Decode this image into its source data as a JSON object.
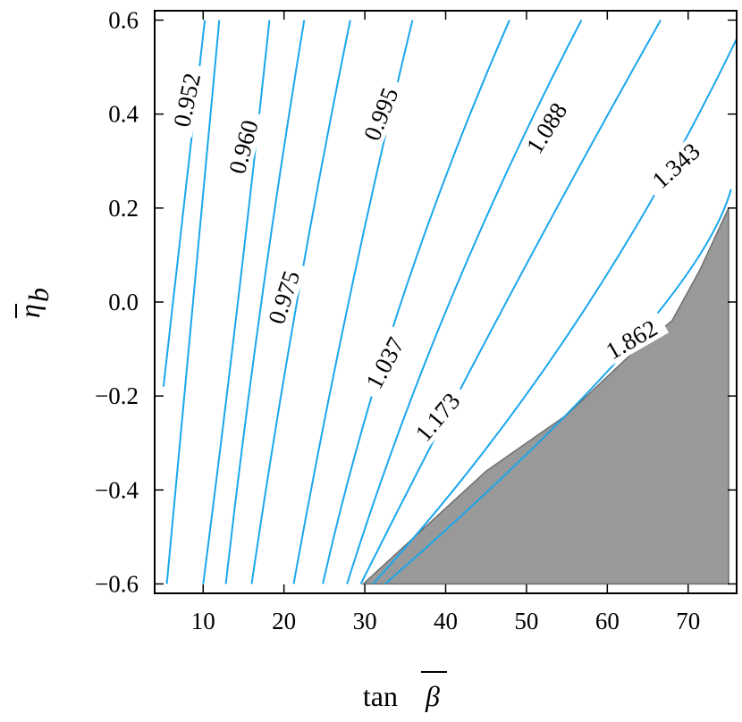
{
  "chart_data": {
    "type": "contour",
    "xlabel": "tan β̄",
    "ylabel": "η̄_b",
    "xlim": [
      4,
      76
    ],
    "ylim": [
      -0.62,
      0.62
    ],
    "x_ticks": [
      10,
      20,
      30,
      40,
      50,
      60,
      70
    ],
    "y_ticks": [
      -0.6,
      -0.4,
      -0.2,
      0.0,
      0.2,
      0.4,
      0.6
    ],
    "y_tick_labels": [
      "−0.6",
      "−0.4",
      "−0.2",
      "0.0",
      "0.2",
      "0.4",
      "0.6"
    ],
    "line_color": "#1aa7ec",
    "excluded_region_color": "#999999",
    "contours": [
      {
        "points": [
          [
            5.1,
            -0.18
          ],
          [
            7.6,
            0.2
          ],
          [
            10.2,
            0.6
          ]
        ]
      },
      {
        "label": "0.952",
        "label_at": [
          8.0,
          0.43
        ],
        "label_angle": -78,
        "points": [
          [
            5.5,
            -0.6
          ],
          [
            8.7,
            0.0
          ],
          [
            12.0,
            0.6
          ]
        ]
      },
      {
        "label": "0.960",
        "label_at": [
          15.0,
          0.33
        ],
        "label_angle": -75,
        "points": [
          [
            10.0,
            -0.6
          ],
          [
            14.3,
            0.0
          ],
          [
            18.2,
            0.6
          ]
        ]
      },
      {
        "points": [
          [
            12.8,
            -0.6
          ],
          [
            17.2,
            0.0
          ],
          [
            22.5,
            0.6
          ]
        ]
      },
      {
        "label": "0.975",
        "label_at": [
          20.0,
          0.01
        ],
        "label_angle": -72,
        "points": [
          [
            16.0,
            -0.6
          ],
          [
            21.6,
            0.0
          ],
          [
            28.2,
            0.6
          ]
        ]
      },
      {
        "label": "0.995",
        "label_at": [
          32.0,
          0.4
        ],
        "label_angle": -68,
        "points": [
          [
            21.2,
            -0.6
          ],
          [
            28.0,
            0.0
          ],
          [
            35.9,
            0.6
          ]
        ]
      },
      {
        "label": "1.037",
        "label_at": [
          32.5,
          -0.13
        ],
        "label_angle": -62,
        "points": [
          [
            24.8,
            -0.6
          ],
          [
            34.5,
            0.0
          ],
          [
            47.9,
            0.6
          ]
        ]
      },
      {
        "label": "1.088",
        "label_at": [
          52.5,
          0.37
        ],
        "label_angle": -58,
        "points": [
          [
            27.8,
            -0.6
          ],
          [
            40.5,
            0.0
          ],
          [
            56.8,
            0.6
          ]
        ]
      },
      {
        "label": "1.173",
        "label_at": [
          39.0,
          -0.245
        ],
        "label_angle": -50,
        "points": [
          [
            29.5,
            -0.6
          ],
          [
            47.5,
            0.0
          ],
          [
            66.6,
            0.6
          ]
        ]
      },
      {
        "label": "1.343",
        "label_at": [
          68.5,
          0.29
        ],
        "label_angle": -42,
        "points": [
          [
            31.0,
            -0.6
          ],
          [
            55.5,
            -0.06
          ],
          [
            76.0,
            0.56
          ]
        ]
      },
      {
        "label": "1.862",
        "label_at": [
          63.0,
          -0.08
        ],
        "label_angle": -30,
        "points": [
          [
            32.5,
            -0.6
          ],
          [
            62.5,
            -0.1
          ],
          [
            75.3,
            0.24
          ]
        ]
      }
    ],
    "excluded_region": [
      [
        29.8,
        -0.6
      ],
      [
        45.0,
        -0.36
      ],
      [
        55.0,
        -0.24
      ],
      [
        63.0,
        -0.11
      ],
      [
        68.0,
        -0.04
      ],
      [
        71.5,
        0.07
      ],
      [
        75.0,
        0.2
      ],
      [
        75.0,
        -0.6
      ]
    ]
  }
}
